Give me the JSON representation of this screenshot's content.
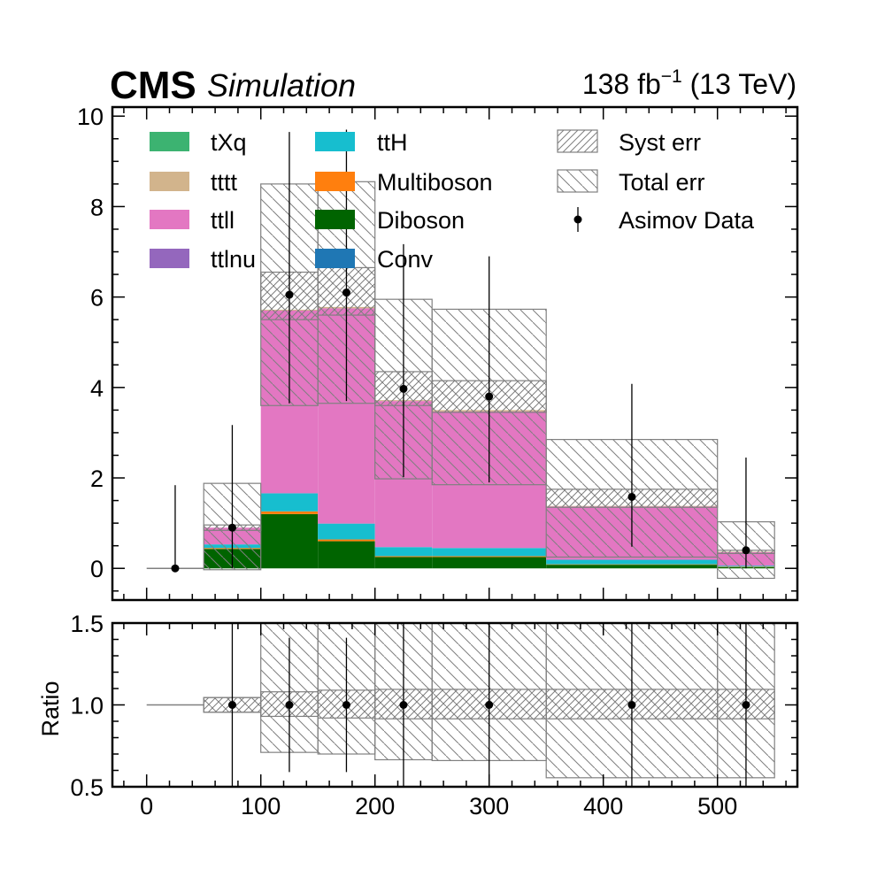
{
  "header": {
    "cms_label": "CMS",
    "status_label": "Simulation",
    "lumi_value": "138 fb",
    "lumi_exponent": "−1",
    "energy_label": " (13 TeV)"
  },
  "chart_data": {
    "type": "histogram-stacked-with-ratio",
    "bin_edges": [
      0,
      50,
      100,
      150,
      200,
      250,
      350,
      500,
      550
    ],
    "xlim": [
      -30,
      570
    ],
    "main_ylim": [
      -0.7,
      10.2
    ],
    "ratio_ylim": [
      0.5,
      1.5
    ],
    "ratio_ylabel": "Ratio",
    "x_ticks": [
      "0",
      "100",
      "200",
      "300",
      "400",
      "500"
    ],
    "x_tick_values": [
      0,
      100,
      200,
      300,
      400,
      500
    ],
    "main_y_ticks": [
      "0",
      "2",
      "4",
      "6",
      "8",
      "10"
    ],
    "main_y_tick_values": [
      0,
      2,
      4,
      6,
      8,
      10
    ],
    "ratio_y_ticks": [
      "0.5",
      "1.0",
      "1.5"
    ],
    "ratio_y_tick_values": [
      0.5,
      1.0,
      1.5
    ],
    "legend": {
      "placement": "top",
      "entries": [
        "tXq",
        "tttt",
        "ttll",
        "ttlnu",
        "ttH",
        "Multiboson",
        "Diboson",
        "Conv",
        "Syst err",
        "Total err",
        "Asimov Data"
      ]
    },
    "series": [
      {
        "name": "Conv",
        "color": "#1f77b4",
        "values": [
          0,
          0,
          0,
          0,
          0,
          0,
          0,
          0
        ]
      },
      {
        "name": "Diboson",
        "color": "#006400",
        "values": [
          0,
          0.43,
          1.2,
          0.6,
          0.25,
          0.25,
          0.08,
          0.03
        ]
      },
      {
        "name": "Multiboson",
        "color": "#ff7f0e",
        "values": [
          0,
          0.02,
          0.06,
          0.04,
          0.02,
          0.02,
          0.01,
          0.01
        ]
      },
      {
        "name": "ttH",
        "color": "#17becf",
        "values": [
          0,
          0.08,
          0.4,
          0.35,
          0.2,
          0.18,
          0.1,
          0.02
        ]
      },
      {
        "name": "ttlnu",
        "color": "#9467bd",
        "values": [
          0,
          0,
          0,
          0,
          0,
          0,
          0,
          0
        ]
      },
      {
        "name": "ttll",
        "color": "#e377c2",
        "values": [
          0,
          0.37,
          4.04,
          4.76,
          3.23,
          3.02,
          1.18,
          0.3
        ]
      },
      {
        "name": "tttt",
        "color": "#d2b48c",
        "values": [
          0,
          0,
          0.02,
          0.03,
          0.02,
          0.03,
          0.01,
          0.01
        ]
      },
      {
        "name": "tXq",
        "color": "#3cb371",
        "values": [
          0,
          0,
          0,
          0,
          0,
          0,
          0,
          0
        ]
      }
    ],
    "syst_err": {
      "low": [
        0,
        0.84,
        5.5,
        5.6,
        3.6,
        3.45,
        1.35,
        0.33
      ],
      "high": [
        0,
        0.96,
        6.55,
        6.65,
        4.35,
        4.15,
        1.75,
        0.4
      ]
    },
    "total_err": {
      "low": [
        0,
        -0.03,
        3.6,
        3.65,
        1.98,
        1.85,
        0.25,
        -0.22
      ],
      "high": [
        0,
        1.88,
        8.5,
        8.55,
        5.95,
        5.73,
        2.85,
        1.03
      ]
    },
    "data": {
      "x": [
        25,
        75,
        125,
        175,
        225,
        300,
        425,
        525
      ],
      "y": [
        0,
        0.9,
        6.05,
        6.1,
        3.97,
        3.8,
        1.58,
        0.4
      ],
      "err_low": [
        0,
        0.9,
        2.4,
        2.4,
        1.95,
        1.9,
        1.1,
        0.4
      ],
      "err_high": [
        1.84,
        2.27,
        3.6,
        3.6,
        3.2,
        3.1,
        2.5,
        2.05
      ]
    },
    "ratio_syst": {
      "low": [
        1.0,
        0.955,
        0.93,
        0.92,
        0.915,
        0.915,
        0.915,
        0.915
      ],
      "high": [
        1.0,
        1.045,
        1.08,
        1.09,
        1.095,
        1.095,
        1.095,
        1.095
      ]
    },
    "ratio_total": {
      "low": [
        1.0,
        0.955,
        0.71,
        0.7,
        0.665,
        0.66,
        0.555,
        0.555
      ],
      "high": [
        1.0,
        1.045,
        1.5,
        1.5,
        1.5,
        1.5,
        1.5,
        1.5
      ]
    },
    "ratio_data": {
      "x": [
        75,
        125,
        175,
        225,
        300,
        425,
        525
      ],
      "y": [
        1.0,
        1.0,
        1.0,
        1.0,
        1.0,
        1.0,
        1.0
      ],
      "err_low": [
        0.5,
        0.41,
        0.41,
        0.5,
        0.5,
        0.5,
        0.5
      ],
      "err_high": [
        0.5,
        0.41,
        0.41,
        0.5,
        0.5,
        0.5,
        0.5
      ]
    }
  }
}
